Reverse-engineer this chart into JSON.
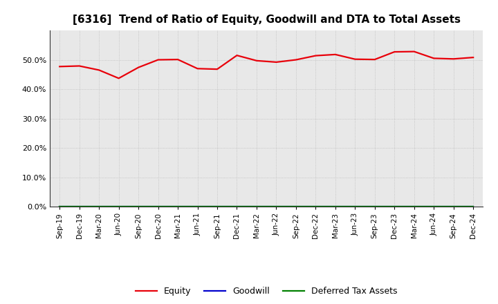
{
  "title": "[6316]  Trend of Ratio of Equity, Goodwill and DTA to Total Assets",
  "x_labels": [
    "Sep-19",
    "Dec-19",
    "Mar-20",
    "Jun-20",
    "Sep-20",
    "Dec-20",
    "Mar-21",
    "Jun-21",
    "Sep-21",
    "Dec-21",
    "Mar-22",
    "Jun-22",
    "Sep-22",
    "Dec-22",
    "Mar-23",
    "Jun-23",
    "Sep-23",
    "Dec-23",
    "Mar-24",
    "Jun-24",
    "Sep-24",
    "Dec-24"
  ],
  "equity": [
    0.477,
    0.479,
    0.465,
    0.437,
    0.474,
    0.5,
    0.501,
    0.47,
    0.468,
    0.515,
    0.497,
    0.492,
    0.5,
    0.514,
    0.518,
    0.502,
    0.501,
    0.527,
    0.528,
    0.505,
    0.503,
    0.508
  ],
  "goodwill": [
    0.0,
    0.0,
    0.0,
    0.0,
    0.0,
    0.0,
    0.0,
    0.0,
    0.0,
    0.0,
    0.0,
    0.0,
    0.0,
    0.0,
    0.0,
    0.0,
    0.0,
    0.0,
    0.0,
    0.0,
    0.0,
    0.0
  ],
  "dta": [
    0.0,
    0.0,
    0.0,
    0.0,
    0.0,
    0.0,
    0.0,
    0.0,
    0.0,
    0.0,
    0.0,
    0.0,
    0.0,
    0.0,
    0.0,
    0.0,
    0.0,
    0.0,
    0.0,
    0.0,
    0.0,
    0.0
  ],
  "equity_color": "#e8000a",
  "goodwill_color": "#0000cd",
  "dta_color": "#008000",
  "ylim": [
    0.0,
    0.6
  ],
  "yticks": [
    0.0,
    0.1,
    0.2,
    0.3,
    0.4,
    0.5
  ],
  "legend_labels": [
    "Equity",
    "Goodwill",
    "Deferred Tax Assets"
  ],
  "background_color": "#ffffff",
  "plot_bg_color": "#e8e8e8",
  "grid_color": "#bbbbbb",
  "title_fontsize": 11
}
